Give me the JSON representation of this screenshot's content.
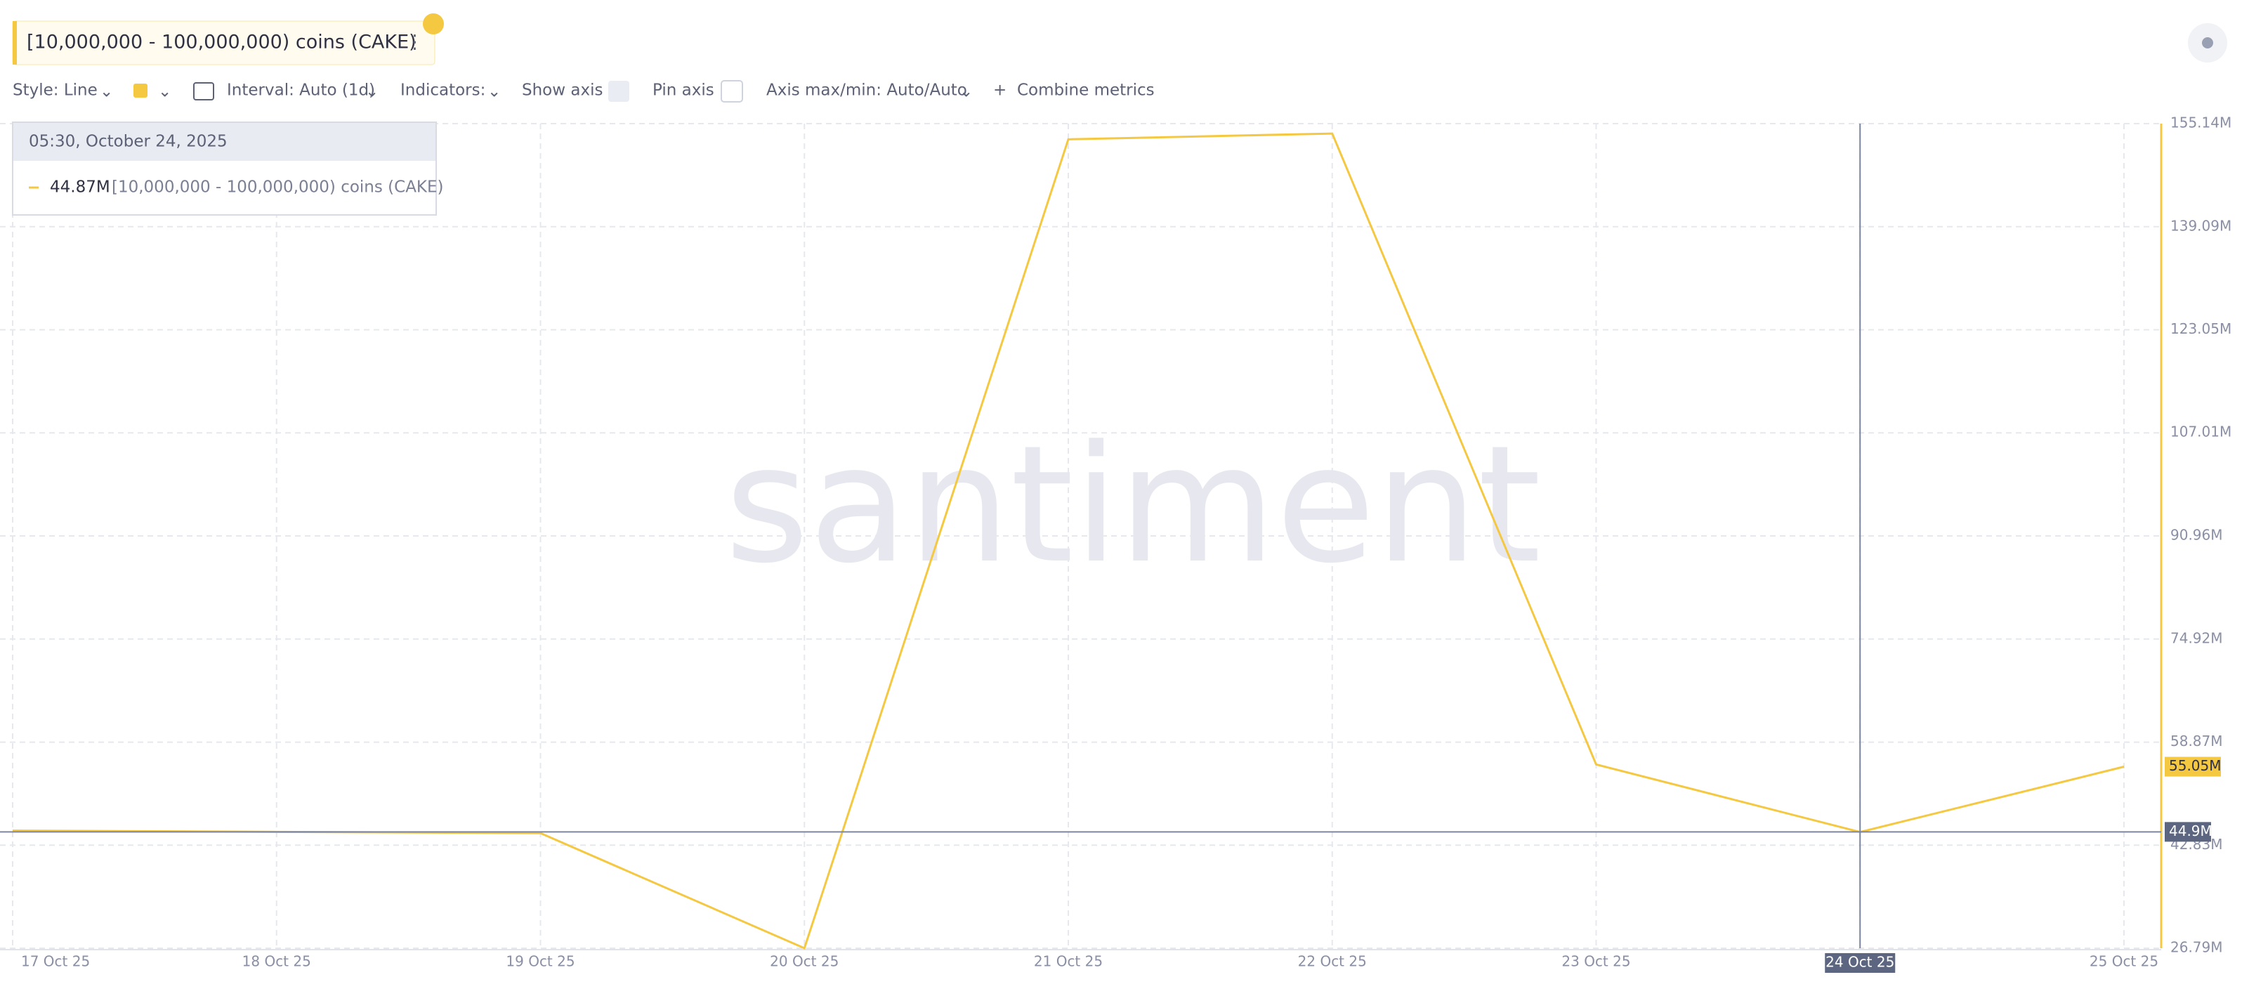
{
  "header": {
    "metric": "[10,000,000 - 100,000,000) coins (CAKE)"
  },
  "toolbar": {
    "style": "Style: Line",
    "interval": "Interval: Auto (1d)",
    "indicators": "Indicators:",
    "show_axis": "Show axis",
    "pin_axis": "Pin axis",
    "axis_range": "Axis max/min: Auto/Auto",
    "combine": "Combine metrics"
  },
  "tooltip": {
    "time": "05:30, October 24, 2025"
  },
  "watermark": "santiment",
  "chart_data": {
    "type": "line",
    "categories": [
      "17 Oct 25",
      "18 Oct 25",
      "19 Oct 25",
      "20 Oct 25",
      "21 Oct 25",
      "22 Oct 25",
      "23 Oct 25",
      "24 Oct 25",
      "25 Oct 25"
    ],
    "series": [
      {
        "name": "[10,000,000 - 100,000,000) coins (CAKE)",
        "color": "#f5c842",
        "values": [
          45.1,
          44.9,
          44.7,
          26.8,
          152.7,
          153.6,
          55.4,
          44.87,
          55.05
        ],
        "value_labels": [
          null,
          null,
          null,
          null,
          null,
          null,
          null,
          "44.87M",
          "55.05M"
        ]
      }
    ],
    "ylim": [
      26.79,
      155.14
    ],
    "yticks": [
      {
        "value": 26.79,
        "label": "26.79M"
      },
      {
        "value": 42.83,
        "label": "42.83M"
      },
      {
        "value": 58.87,
        "label": "58.87M"
      },
      {
        "value": 74.92,
        "label": "74.92M"
      },
      {
        "value": 90.96,
        "label": "90.96M"
      },
      {
        "value": 107.01,
        "label": "107.01M"
      },
      {
        "value": 123.05,
        "label": "123.05M"
      },
      {
        "value": 139.09,
        "label": "139.09M"
      },
      {
        "value": 155.14,
        "label": "155.14M"
      }
    ],
    "grid": true,
    "crosshair": {
      "x": "24 Oct 25",
      "y": {
        "value": 44.9,
        "label": "44.9M"
      }
    }
  }
}
